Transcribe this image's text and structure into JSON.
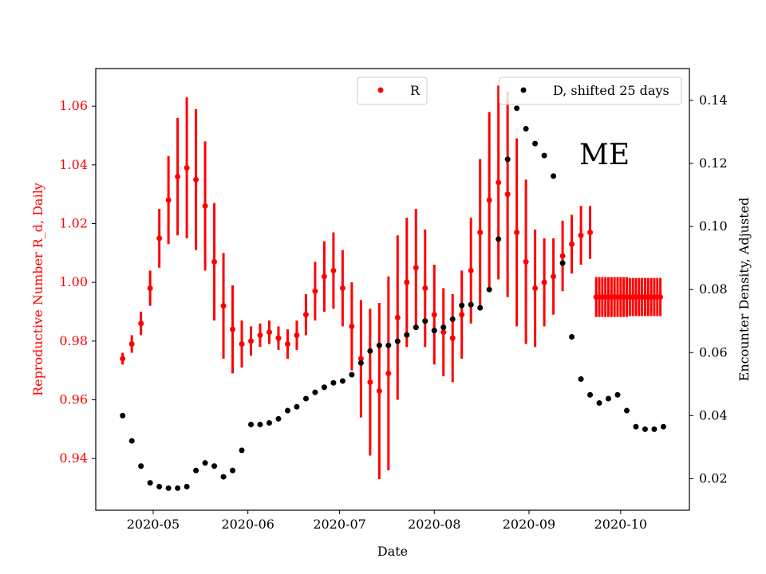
{
  "chart_data": {
    "type": "scatter",
    "title": "",
    "annotation": "ME",
    "xlabel": "Date",
    "ylabel_left": "Reproductive Number R_d, Daily",
    "ylabel_right": "Encounter Density, Adjusted",
    "x_origin_date": "2020-04-21",
    "xlim_days": [
      -8.8,
      185.5
    ],
    "ylim_left": [
      0.9224,
      1.0728
    ],
    "ylim_right": [
      0.01,
      0.1501
    ],
    "x_ticks": [
      {
        "label": "2020-05",
        "day": 10
      },
      {
        "label": "2020-06",
        "day": 41
      },
      {
        "label": "2020-07",
        "day": 71
      },
      {
        "label": "2020-08",
        "day": 102
      },
      {
        "label": "2020-09",
        "day": 133
      },
      {
        "label": "2020-10",
        "day": 163
      }
    ],
    "y_ticks_left": [
      "0.94",
      "0.96",
      "0.98",
      "1.00",
      "1.02",
      "1.04",
      "1.06"
    ],
    "y_ticks_right": [
      "0.02",
      "0.04",
      "0.06",
      "0.08",
      "0.10",
      "0.12",
      "0.14"
    ],
    "legend": [
      {
        "label": "R",
        "placement": "top-center"
      },
      {
        "label": "D, shifted 25 days",
        "placement": "top-right"
      }
    ],
    "colors": {
      "R": "#ff0000",
      "D": "#000000",
      "left_axis": "#ff0000"
    },
    "series": [
      {
        "name": "R",
        "axis": "left",
        "start_day": 0,
        "step_days": 3,
        "values": [
          0.974,
          0.979,
          0.986,
          0.998,
          1.015,
          1.028,
          1.036,
          1.039,
          1.035,
          1.026,
          1.007,
          0.992,
          0.984,
          0.979,
          0.98,
          0.982,
          0.983,
          0.981,
          0.979,
          0.982,
          0.989,
          0.997,
          1.002,
          1.004,
          0.998,
          0.985,
          0.974,
          0.966,
          0.963,
          0.969,
          0.988,
          1.0,
          1.005,
          0.998,
          0.989,
          0.983,
          0.981,
          0.989,
          1.004,
          1.017,
          1.028,
          1.034,
          1.03,
          1.017,
          1.007,
          0.998,
          1.0,
          1.002,
          1.009,
          1.013,
          1.016,
          1.017
        ],
        "error": [
          0.002,
          0.003,
          0.004,
          0.006,
          0.01,
          0.015,
          0.02,
          0.024,
          0.024,
          0.022,
          0.02,
          0.018,
          0.015,
          0.008,
          0.005,
          0.004,
          0.004,
          0.004,
          0.005,
          0.005,
          0.007,
          0.01,
          0.012,
          0.013,
          0.013,
          0.015,
          0.02,
          0.025,
          0.03,
          0.033,
          0.028,
          0.022,
          0.02,
          0.02,
          0.017,
          0.015,
          0.015,
          0.015,
          0.018,
          0.025,
          0.03,
          0.033,
          0.035,
          0.032,
          0.028,
          0.02,
          0.015,
          0.013,
          0.012,
          0.01,
          0.01,
          0.009
        ]
      },
      {
        "name": "R projection",
        "axis": "left",
        "start_day": 155,
        "step_days": 1,
        "values": [
          0.995,
          0.995,
          0.995,
          0.995,
          0.995,
          0.995,
          0.995,
          0.995,
          0.995,
          0.995,
          0.995,
          0.995,
          0.995,
          0.995,
          0.995,
          0.995,
          0.995,
          0.995,
          0.995,
          0.995,
          0.995,
          0.995
        ],
        "error": [
          0.0068,
          0.0068,
          0.0068,
          0.0068,
          0.0068,
          0.0068,
          0.0068,
          0.0068,
          0.0068,
          0.0068,
          0.0068,
          0.0065,
          0.0065,
          0.0065,
          0.0065,
          0.0065,
          0.0065,
          0.0065,
          0.0065,
          0.0065,
          0.0065,
          0.0065
        ]
      },
      {
        "name": "D, shifted 25 days",
        "axis": "right",
        "start_day": 0,
        "step_days": 3,
        "values": [
          0.04,
          0.032,
          0.024,
          0.0187,
          0.0175,
          0.017,
          0.017,
          0.0175,
          0.0226,
          0.025,
          0.024,
          0.0206,
          0.0226,
          0.029,
          0.0372,
          0.0372,
          0.0377,
          0.039,
          0.0416,
          0.0428,
          0.0454,
          0.0474,
          0.049,
          0.0504,
          0.051,
          0.053,
          0.0567,
          0.0605,
          0.0623,
          0.0623,
          0.0636,
          0.0656,
          0.068,
          0.07,
          0.067,
          0.068,
          0.0706,
          0.075,
          0.0752,
          0.0742,
          0.08,
          0.096,
          0.1213,
          0.1375,
          0.131,
          0.1263,
          0.1225,
          0.116,
          0.0884,
          0.065,
          0.0516,
          0.0466,
          0.044,
          0.0454,
          0.0466,
          0.0416,
          0.0365,
          0.0357,
          0.0357,
          0.0365
        ]
      }
    ]
  }
}
